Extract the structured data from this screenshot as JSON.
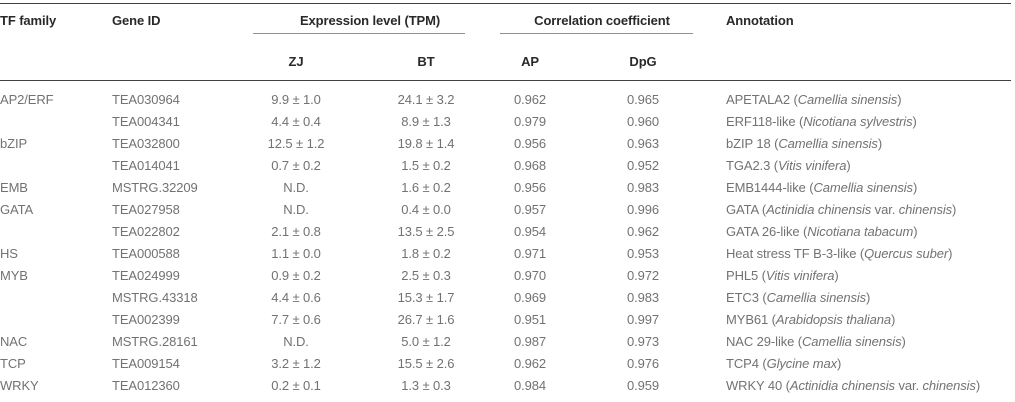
{
  "table": {
    "header": {
      "tf_family": "TF family",
      "gene_id": "Gene ID",
      "expression_group": "Expression level (TPM)",
      "correlation_group": "Correlation coefficient",
      "zj": "ZJ",
      "bt": "BT",
      "ap": "AP",
      "dpg": "DpG",
      "annotation": "Annotation"
    },
    "colors": {
      "header_text": "#29292b",
      "body_text": "#717276",
      "dark_rule": "#414144",
      "light_rule": "#98989b",
      "group_rule": "#8f9093"
    },
    "rows": [
      {
        "tf_family": "AP2/ERF",
        "gene_id": "TEA030964",
        "zj": "9.9 ± 1.0",
        "bt": "24.1 ± 3.2",
        "ap": "0.962",
        "dpg": "0.965",
        "annotation": [
          {
            "t": "APETALA2 (",
            "i": false
          },
          {
            "t": "Camellia sinensis",
            "i": true
          },
          {
            "t": ")",
            "i": false
          }
        ]
      },
      {
        "tf_family": "",
        "gene_id": "TEA004341",
        "zj": "4.4 ± 0.4",
        "bt": "8.9 ± 1.3",
        "ap": "0.979",
        "dpg": "0.960",
        "annotation": [
          {
            "t": "ERF118-like (",
            "i": false
          },
          {
            "t": "Nicotiana sylvestris",
            "i": true
          },
          {
            "t": ")",
            "i": false
          }
        ]
      },
      {
        "tf_family": "bZIP",
        "gene_id": "TEA032800",
        "zj": "12.5 ± 1.2",
        "bt": "19.8 ± 1.4",
        "ap": "0.956",
        "dpg": "0.963",
        "annotation": [
          {
            "t": "bZIP 18 (",
            "i": false
          },
          {
            "t": "Camellia sinensis",
            "i": true
          },
          {
            "t": ")",
            "i": false
          }
        ]
      },
      {
        "tf_family": "",
        "gene_id": "TEA014041",
        "zj": "0.7 ± 0.2",
        "bt": "1.5 ± 0.2",
        "ap": "0.968",
        "dpg": "0.952",
        "annotation": [
          {
            "t": "TGA2.3 (",
            "i": false
          },
          {
            "t": "Vitis vinifera",
            "i": true
          },
          {
            "t": ")",
            "i": false
          }
        ]
      },
      {
        "tf_family": "EMB",
        "gene_id": "MSTRG.32209",
        "zj": "N.D.",
        "bt": "1.6 ± 0.2",
        "ap": "0.956",
        "dpg": "0.983",
        "annotation": [
          {
            "t": "EMB1444-like (",
            "i": false
          },
          {
            "t": "Camellia sinensis",
            "i": true
          },
          {
            "t": ")",
            "i": false
          }
        ]
      },
      {
        "tf_family": "GATA",
        "gene_id": "TEA027958",
        "zj": "N.D.",
        "bt": "0.4 ± 0.0",
        "ap": "0.957",
        "dpg": "0.996",
        "annotation": [
          {
            "t": "GATA (",
            "i": false
          },
          {
            "t": "Actinidia chinensis",
            "i": true
          },
          {
            "t": " var. ",
            "i": false
          },
          {
            "t": "chinensis",
            "i": true
          },
          {
            "t": ")",
            "i": false
          }
        ]
      },
      {
        "tf_family": "",
        "gene_id": "TEA022802",
        "zj": "2.1 ± 0.8",
        "bt": "13.5 ± 2.5",
        "ap": "0.954",
        "dpg": "0.962",
        "annotation": [
          {
            "t": "GATA 26-like (",
            "i": false
          },
          {
            "t": "Nicotiana tabacum",
            "i": true
          },
          {
            "t": ")",
            "i": false
          }
        ]
      },
      {
        "tf_family": "HS",
        "gene_id": "TEA000588",
        "zj": "1.1 ± 0.0",
        "bt": "1.8 ± 0.2",
        "ap": "0.971",
        "dpg": "0.953",
        "annotation": [
          {
            "t": "Heat stress TF B-3-like (",
            "i": false
          },
          {
            "t": "Quercus suber",
            "i": true
          },
          {
            "t": ")",
            "i": false
          }
        ]
      },
      {
        "tf_family": "MYB",
        "gene_id": "TEA024999",
        "zj": "0.9 ± 0.2",
        "bt": "2.5 ± 0.3",
        "ap": "0.970",
        "dpg": "0.972",
        "annotation": [
          {
            "t": "PHL5 (",
            "i": false
          },
          {
            "t": "Vitis vinifera",
            "i": true
          },
          {
            "t": ")",
            "i": false
          }
        ]
      },
      {
        "tf_family": "",
        "gene_id": "MSTRG.43318",
        "zj": "4.4 ± 0.6",
        "bt": "15.3 ± 1.7",
        "ap": "0.969",
        "dpg": "0.983",
        "annotation": [
          {
            "t": "ETC3 (",
            "i": false
          },
          {
            "t": "Camellia sinensis",
            "i": true
          },
          {
            "t": ")",
            "i": false
          }
        ]
      },
      {
        "tf_family": "",
        "gene_id": "TEA002399",
        "zj": "7.7 ± 0.6",
        "bt": "26.7 ± 1.6",
        "ap": "0.951",
        "dpg": "0.997",
        "annotation": [
          {
            "t": "MYB61 (",
            "i": false
          },
          {
            "t": "Arabidopsis thaliana",
            "i": true
          },
          {
            "t": ")",
            "i": false
          }
        ]
      },
      {
        "tf_family": "NAC",
        "gene_id": "MSTRG.28161",
        "zj": "N.D.",
        "bt": "5.0 ± 1.2",
        "ap": "0.987",
        "dpg": "0.973",
        "annotation": [
          {
            "t": "NAC 29-like (",
            "i": false
          },
          {
            "t": "Camellia sinensis",
            "i": true
          },
          {
            "t": ")",
            "i": false
          }
        ]
      },
      {
        "tf_family": "TCP",
        "gene_id": "TEA009154",
        "zj": "3.2 ± 1.2",
        "bt": "15.5 ± 2.6",
        "ap": "0.962",
        "dpg": "0.976",
        "annotation": [
          {
            "t": "TCP4 (",
            "i": false
          },
          {
            "t": "Glycine max",
            "i": true
          },
          {
            "t": ")",
            "i": false
          }
        ]
      },
      {
        "tf_family": "WRKY",
        "gene_id": "TEA012360",
        "zj": "0.2 ± 0.1",
        "bt": "1.3 ± 0.3",
        "ap": "0.984",
        "dpg": "0.959",
        "annotation": [
          {
            "t": "WRKY 40 (",
            "i": false
          },
          {
            "t": "Actinidia chinensis",
            "i": true
          },
          {
            "t": " var. ",
            "i": false
          },
          {
            "t": "chinensis",
            "i": true
          },
          {
            "t": ")",
            "i": false
          }
        ]
      }
    ]
  }
}
